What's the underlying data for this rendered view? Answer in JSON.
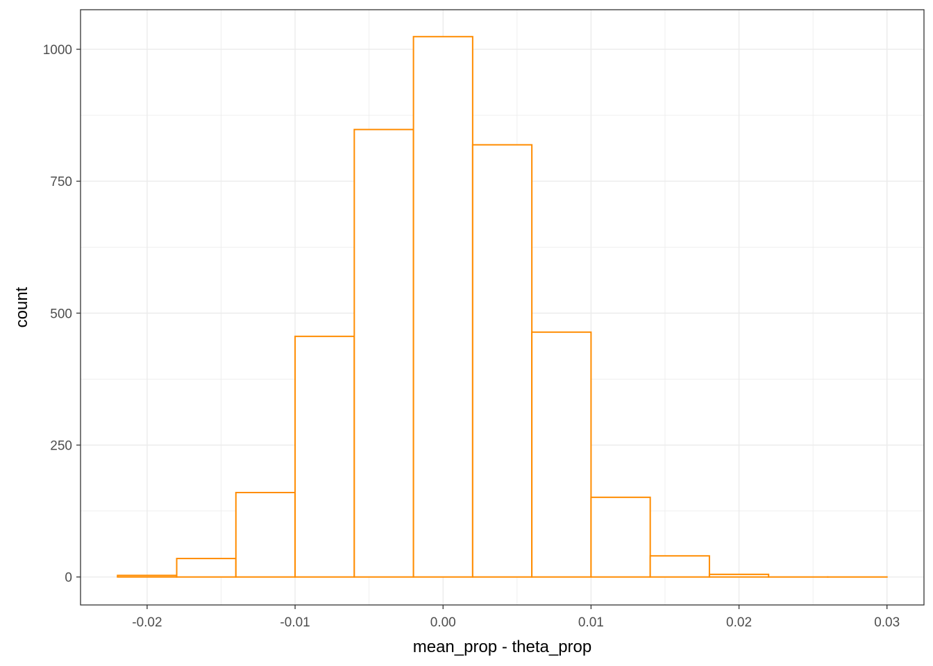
{
  "chart_data": {
    "type": "histogram",
    "xlabel": "mean_prop - theta_prop",
    "ylabel": "count",
    "xlim": [
      -0.0245,
      0.0325
    ],
    "ylim": [
      -53,
      1075
    ],
    "x_ticks": [
      -0.02,
      -0.01,
      0.0,
      0.01,
      0.02,
      0.03
    ],
    "x_tick_labels": [
      "-0.02",
      "-0.01",
      "0.00",
      "0.01",
      "0.02",
      "0.03"
    ],
    "y_ticks": [
      0,
      250,
      500,
      750,
      1000
    ],
    "y_tick_labels": [
      "0",
      "250",
      "500",
      "750",
      "1000"
    ],
    "grid": true,
    "bin_width": 0.004,
    "bins": [
      {
        "x0": -0.022,
        "x1": -0.018,
        "count": 3
      },
      {
        "x0": -0.018,
        "x1": -0.014,
        "count": 35
      },
      {
        "x0": -0.014,
        "x1": -0.01,
        "count": 160
      },
      {
        "x0": -0.01,
        "x1": -0.006,
        "count": 456
      },
      {
        "x0": -0.006,
        "x1": -0.002,
        "count": 848
      },
      {
        "x0": -0.002,
        "x1": 0.002,
        "count": 1024
      },
      {
        "x0": 0.002,
        "x1": 0.006,
        "count": 819
      },
      {
        "x0": 0.006,
        "x1": 0.01,
        "count": 464
      },
      {
        "x0": 0.01,
        "x1": 0.014,
        "count": 151
      },
      {
        "x0": 0.014,
        "x1": 0.018,
        "count": 40
      },
      {
        "x0": 0.018,
        "x1": 0.022,
        "count": 5
      },
      {
        "x0": 0.022,
        "x1": 0.026,
        "count": 0
      },
      {
        "x0": 0.026,
        "x1": 0.03,
        "count": 0
      }
    ],
    "colors": {
      "outline": "#ff8c00",
      "fill": "#ffffff",
      "grid": "#ebebeb",
      "panel_border": "#333333"
    }
  }
}
